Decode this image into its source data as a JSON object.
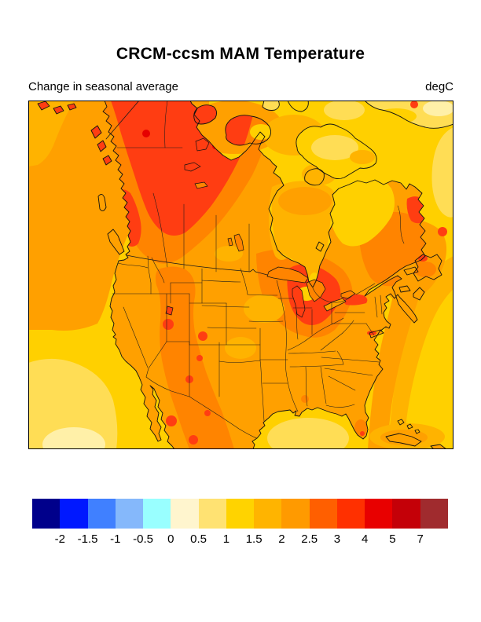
{
  "header": {
    "title": "CRCM-ccsm MAM Temperature",
    "subtitle_left": "Change in seasonal average",
    "units": "degC"
  },
  "colorbar": {
    "labels": [
      "-2",
      "-1.5",
      "-1",
      "-0.5",
      "0",
      "0.5",
      "1",
      "1.5",
      "2",
      "2.5",
      "3",
      "4",
      "5",
      "7"
    ],
    "colors": [
      "#00008B",
      "#0018FF",
      "#4080FF",
      "#85B8FB",
      "#99FFFF",
      "#FFF5CE",
      "#FFE272",
      "#FFD300",
      "#FFB400",
      "#FF9A00",
      "#FF5F00",
      "#FF3000",
      "#E80000",
      "#C40008",
      "#A02B2E"
    ]
  },
  "map": {
    "region": "North America",
    "palette": {
      "ocean_gold": "#FFD000",
      "light_gold": "#FFDD55",
      "cream": "#FFF0A8",
      "amber": "#FFB300",
      "orange": "#FFA000",
      "dark_orange": "#FF8400",
      "red_orange": "#FF3D12",
      "deep_red": "#E60000",
      "coastline": "#111111",
      "state_line": "#1a1a1a",
      "frame": "#000000"
    }
  },
  "chart_data": {
    "type": "heatmap",
    "title": "CRCM-ccsm MAM Temperature",
    "subtitle": "Change in seasonal average",
    "units": "degC",
    "levels": [
      -2,
      -1.5,
      -1,
      -0.5,
      0,
      0.5,
      1,
      1.5,
      2,
      2.5,
      3,
      4,
      5,
      7
    ],
    "palette_hex": [
      "#00008B",
      "#0018FF",
      "#4080FF",
      "#85B8FB",
      "#99FFFF",
      "#FFF5CE",
      "#FFE272",
      "#FFD300",
      "#FFB400",
      "#FF9A00",
      "#FF5F00",
      "#FF3000",
      "#E80000",
      "#C40008",
      "#A02B2E"
    ],
    "legend_position": "bottom",
    "approx_change_by_region_degC": {
      "northwest_canada_yukon_nwt": 3.5,
      "western_canada_interior": 2.75,
      "central_canada_prairies": 2.25,
      "hudson_bay": 1.75,
      "northern_quebec_ungava": 1.25,
      "quebec_labrador_interior": 2.75,
      "labrador_coast_spot": 3.5,
      "arctic_islands": 1.5,
      "us_west_rockies_southwest": 2.75,
      "us_southwest_red_spots": 3.5,
      "us_plains_midwest": 2.25,
      "great_lakes_michigan_area": 3.5,
      "us_east_southeast": 2.25,
      "mexico_interior": 2.75,
      "pacific_offshore_north": 2.0,
      "pacific_offshore_south": 1.25,
      "pacific_far_southwest_patch": 0.75,
      "atlantic_open_ocean": 1.25,
      "atlantic_near_coast": 2.0,
      "gulf_of_mexico_center": 0.75
    }
  }
}
